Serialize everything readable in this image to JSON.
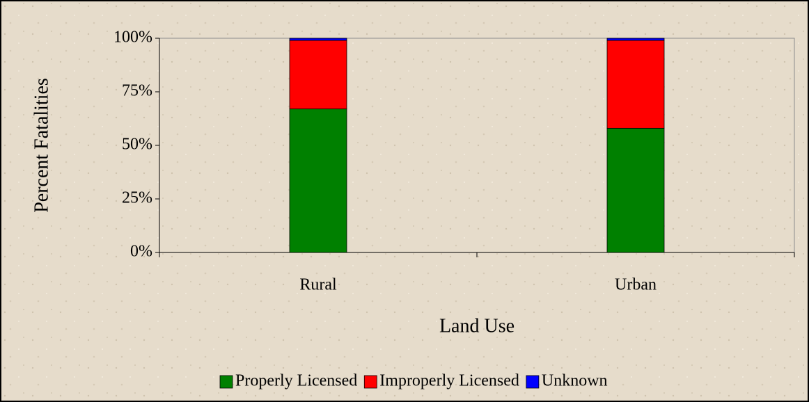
{
  "chart_data": {
    "type": "stacked_bar",
    "x_label": "Land Use",
    "y_label": "Percent Fatalities",
    "categories": [
      "Rural",
      "Urban"
    ],
    "series": [
      {
        "name": "Properly Licensed",
        "color": "#008000",
        "values": [
          67,
          58
        ]
      },
      {
        "name": "Improperly Licensed",
        "color": "#ff0000",
        "values": [
          32,
          41
        ]
      },
      {
        "name": "Unknown",
        "color": "#0000ff",
        "values": [
          1,
          1
        ]
      }
    ],
    "ylim": [
      0,
      100
    ],
    "yticks": [
      {
        "value": 0,
        "label": "0%"
      },
      {
        "value": 25,
        "label": "25%"
      },
      {
        "value": 50,
        "label": "50%"
      },
      {
        "value": 75,
        "label": "75%"
      },
      {
        "value": 100,
        "label": "100%"
      }
    ],
    "legend": "bottom"
  }
}
